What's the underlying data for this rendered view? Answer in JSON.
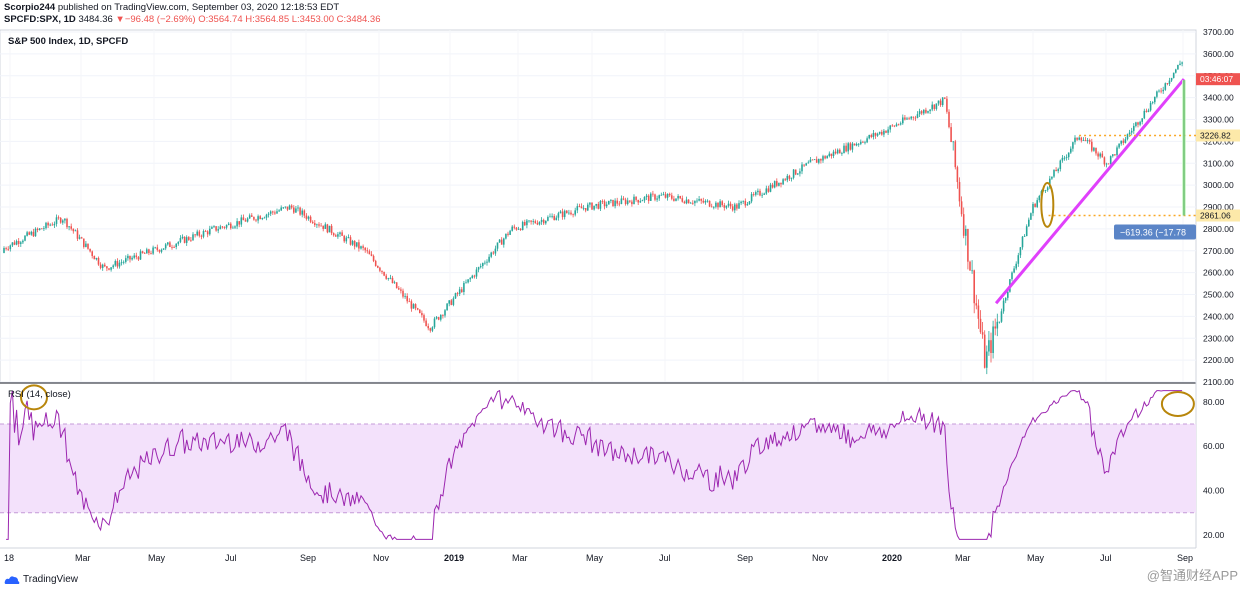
{
  "header": {
    "author": "Scorpio244",
    "published": " published on TradingView.com, September 03, 2020 12:18:53 EDT",
    "symbol": "SPCFD:SPX, 1D",
    "last": "3484.36",
    "arrow": "▼",
    "change": "−96.48 (−2.69%)",
    "ohlc": "O:3564.74 H:3564.85 L:3453.00 C:3484.36"
  },
  "chart_title": "S&P 500 Index, 1D, SPCFD",
  "rsi_title": "RSI (14, close)",
  "logo_text": "TradingView",
  "watermark": "@智通财经APP",
  "colors": {
    "up": "#26a69a",
    "down": "#ef5350",
    "trendline": "#e040fb",
    "rsi_line": "#9c27b0",
    "rsi_band": "#f3e1fb",
    "highlight": "#f9a825",
    "circle": "#b8860b",
    "measure": "#4caf50",
    "label_blue": "#5b85c7"
  },
  "chart_data": [
    {
      "type": "candlestick",
      "x": [
        "2018-01",
        "2018-02-26",
        "2018-04-01",
        "2018-05-01",
        "2018-07-01",
        "2018-09-01",
        "2018-11-01",
        "2018-12-24",
        "2019-03-01",
        "2019-05-01",
        "2019-07-01",
        "2019-09-01",
        "2019-11-01",
        "2020-01-01",
        "2020-02-19",
        "2020-03-23",
        "2020-05-01",
        "2020-06-08",
        "2020-07-01",
        "2020-09-02"
      ],
      "values": [
        2690,
        2850,
        2620,
        2680,
        2800,
        2900,
        2700,
        2350,
        2800,
        2900,
        2950,
        2900,
        3100,
        3250,
        3390,
        2190,
        2900,
        3230,
        3100,
        3580
      ],
      "ylim": [
        2100,
        3700
      ],
      "ticks_y": [
        "2100.00",
        "2200.00",
        "2300.00",
        "2400.00",
        "2500.00",
        "2600.00",
        "2700.00",
        "2800.00",
        "2900.00",
        "3000.00",
        "3100.00",
        "3200.00",
        "3300.00",
        "3400.00",
        "3500.00",
        "3600.00",
        "3700.00"
      ],
      "price_labels": {
        "current": "03:46:07",
        "top_level": "3226.82",
        "bottom_level": "2861.06",
        "measure": "−619.36 (−17.78"
      }
    },
    {
      "type": "line",
      "name": "RSI (14, close)",
      "ylim": [
        15,
        88
      ],
      "ticks_y": [
        "20.00",
        "40.00",
        "60.00",
        "80.00"
      ],
      "band": [
        30,
        70
      ]
    }
  ],
  "x_axis": {
    "labels": [
      "18",
      "Mar",
      "May",
      "Jul",
      "Sep",
      "Nov",
      "2019",
      "Mar",
      "May",
      "Jul",
      "Sep",
      "Nov",
      "2020",
      "Mar",
      "May",
      "Jul",
      "Sep"
    ],
    "bold": [
      "2019",
      "2020"
    ]
  }
}
